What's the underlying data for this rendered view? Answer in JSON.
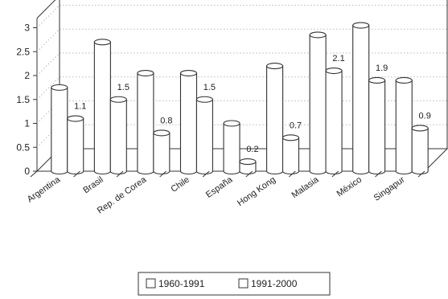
{
  "chart_data": {
    "type": "bar",
    "style": "3d-cylinder",
    "categories": [
      "Argentina",
      "Brasil",
      "Rep. de Corea",
      "Chile",
      "España",
      "Hong Kong",
      "Malasia",
      "México",
      "Singapur"
    ],
    "series": [
      {
        "name": "1960-1991",
        "values": [
          1.75,
          2.7,
          2.05,
          2.05,
          1.0,
          2.2,
          2.85,
          3.05,
          1.9
        ]
      },
      {
        "name": "1991-2000",
        "values": [
          1.1,
          1.5,
          0.8,
          1.5,
          0.2,
          0.7,
          2.1,
          1.9,
          0.9
        ]
      }
    ],
    "data_labels_series": "1991-2000",
    "data_labels": [
      "1.1",
      "1.5",
      "0.8",
      "1.5",
      "0.2",
      "0.7",
      "2.1",
      "1.9",
      "0.9"
    ],
    "yticks": [
      "0",
      "0.5",
      "1",
      "1.5",
      "2",
      "2.5",
      "3"
    ],
    "ylim": [
      0,
      3.2
    ],
    "grid": "dotted",
    "legend_position": "bottom",
    "colors": {
      "bar_fill": "#ffffff",
      "bar_stroke": "#333333",
      "axis": "#333333",
      "grid": "#999999"
    }
  }
}
